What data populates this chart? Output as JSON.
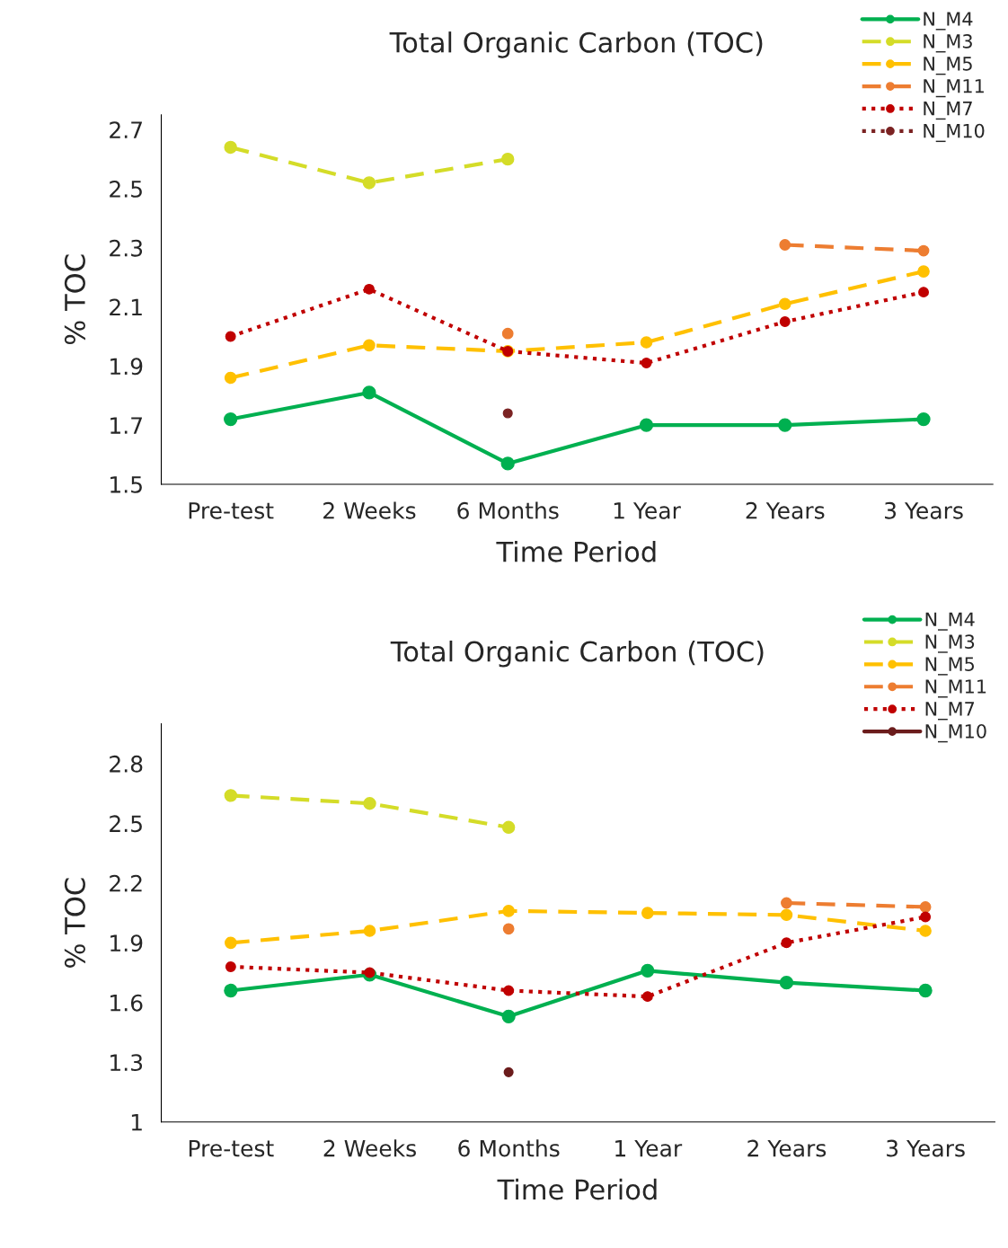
{
  "chart_data": [
    {
      "type": "line",
      "title": "Total Organic Carbon (TOC)",
      "xlabel": "Time Period",
      "ylabel": "% TOC",
      "categories": [
        "Pre-test",
        "2 Weeks",
        "6 Months",
        "1 Year",
        "2 Years",
        "3 Years"
      ],
      "ylim": [
        1.5,
        2.75
      ],
      "yticks": [
        1.5,
        1.7,
        1.9,
        2.1,
        2.3,
        2.5,
        2.7
      ],
      "grid": false,
      "legend": "top right",
      "marker": "circle",
      "series": [
        {
          "name": "N_M4",
          "color": "#00b050",
          "line_style": "solid",
          "values": [
            1.72,
            1.81,
            1.57,
            1.7,
            1.7,
            1.72
          ]
        },
        {
          "name": "N_M3",
          "color": "#d4dc28",
          "line_style": "dashed",
          "values": [
            2.64,
            2.52,
            2.6,
            null,
            null,
            null
          ]
        },
        {
          "name": "N_M5",
          "color": "#ffc000",
          "line_style": "dashed",
          "values": [
            1.86,
            1.97,
            1.95,
            1.98,
            2.11,
            2.22
          ]
        },
        {
          "name": "N_M11",
          "color": "#ed7d31",
          "line_style": "dashed",
          "values": [
            null,
            null,
            2.01,
            null,
            2.31,
            2.29
          ]
        },
        {
          "name": "N_M7",
          "color": "#c00000",
          "line_style": "dotted",
          "values": [
            2.0,
            2.16,
            1.95,
            1.91,
            2.05,
            2.15
          ]
        },
        {
          "name": "N_M10",
          "color": "#7b2323",
          "line_style": "dotted",
          "values": [
            null,
            null,
            1.74,
            null,
            null,
            null
          ]
        }
      ]
    },
    {
      "type": "line",
      "title": "Total Organic Carbon (TOC)",
      "xlabel": "Time Period",
      "ylabel": "% TOC",
      "categories": [
        "Pre-test",
        "2 Weeks",
        "6 Months",
        "1 Year",
        "2 Years",
        "3 Years"
      ],
      "ylim": [
        1,
        3.0
      ],
      "yticks": [
        1,
        1.3,
        1.6,
        1.9,
        2.2,
        2.5,
        2.8
      ],
      "grid": false,
      "legend": "top right",
      "marker": "circle",
      "series": [
        {
          "name": "N_M4",
          "color": "#00b050",
          "line_style": "solid",
          "values": [
            1.66,
            1.74,
            1.53,
            1.76,
            1.7,
            1.66
          ]
        },
        {
          "name": "N_M3",
          "color": "#d4dc28",
          "line_style": "dashed",
          "values": [
            2.64,
            2.6,
            2.48,
            null,
            null,
            null
          ]
        },
        {
          "name": "N_M5",
          "color": "#ffc000",
          "line_style": "dashed",
          "values": [
            1.9,
            1.96,
            2.06,
            2.05,
            2.04,
            1.96
          ]
        },
        {
          "name": "N_M11",
          "color": "#ed7d31",
          "line_style": "dashed",
          "values": [
            null,
            null,
            1.97,
            null,
            2.1,
            2.08
          ]
        },
        {
          "name": "N_M7",
          "color": "#c00000",
          "line_style": "dotted",
          "values": [
            1.78,
            1.75,
            1.66,
            1.63,
            1.9,
            2.03
          ]
        },
        {
          "name": "N_M10",
          "color": "#6b1c1c",
          "line_style": "solid",
          "values": [
            null,
            null,
            1.25,
            null,
            null,
            null
          ]
        }
      ]
    }
  ]
}
